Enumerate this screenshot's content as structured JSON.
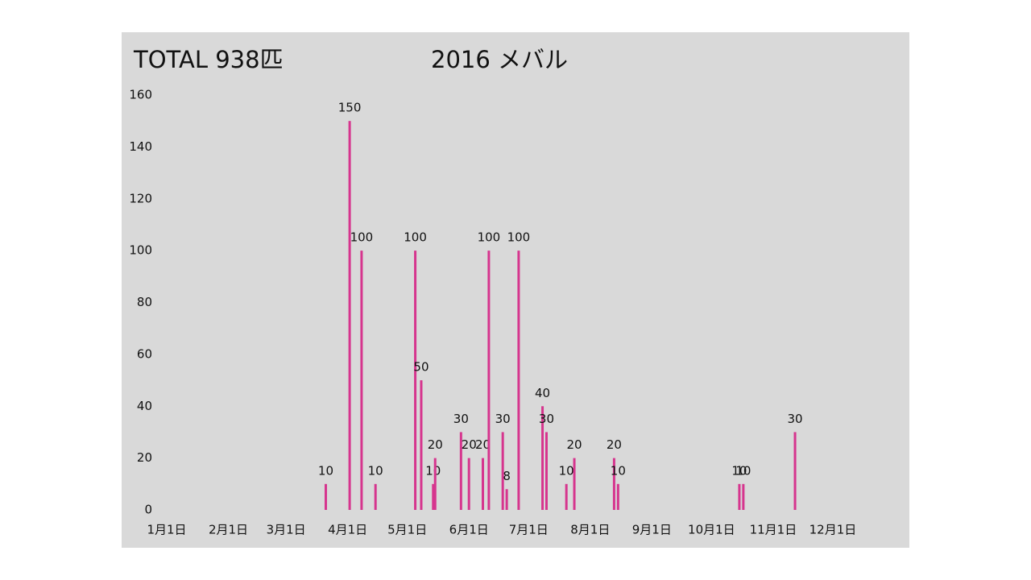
{
  "chart_data": {
    "type": "bar",
    "title": "TOTAL 938匹",
    "subtitle": "2016 メバル",
    "x": [
      "03-21",
      "04-02",
      "04-08",
      "04-15",
      "05-05",
      "05-08",
      "05-14",
      "05-15",
      "05-28",
      "06-01",
      "06-08",
      "06-11",
      "06-18",
      "06-20",
      "06-26",
      "07-08",
      "07-10",
      "07-20",
      "07-24",
      "08-13",
      "08-15",
      "10-15",
      "10-17",
      "11-12"
    ],
    "values": [
      10,
      150,
      100,
      10,
      100,
      50,
      10,
      20,
      30,
      20,
      20,
      100,
      30,
      8,
      100,
      40,
      30,
      10,
      20,
      20,
      10,
      10,
      10,
      30
    ],
    "color": "#d6358e",
    "xlim": [
      "01-01",
      "12-31"
    ],
    "xticks": [
      {
        "value": "01-01",
        "label": "1月1日"
      },
      {
        "value": "02-01",
        "label": "2月1日"
      },
      {
        "value": "03-01",
        "label": "3月1日"
      },
      {
        "value": "04-01",
        "label": "4月1日"
      },
      {
        "value": "05-01",
        "label": "5月1日"
      },
      {
        "value": "06-01",
        "label": "6月1日"
      },
      {
        "value": "07-01",
        "label": "7月1日"
      },
      {
        "value": "08-01",
        "label": "8月1日"
      },
      {
        "value": "09-01",
        "label": "9月1日"
      },
      {
        "value": "10-01",
        "label": "10月1日"
      },
      {
        "value": "11-01",
        "label": "11月1日"
      },
      {
        "value": "12-01",
        "label": "12月1日"
      }
    ],
    "ylim": [
      0,
      160
    ],
    "yticks": [
      0,
      20,
      40,
      60,
      80,
      100,
      120,
      140,
      160
    ],
    "grid": false
  }
}
